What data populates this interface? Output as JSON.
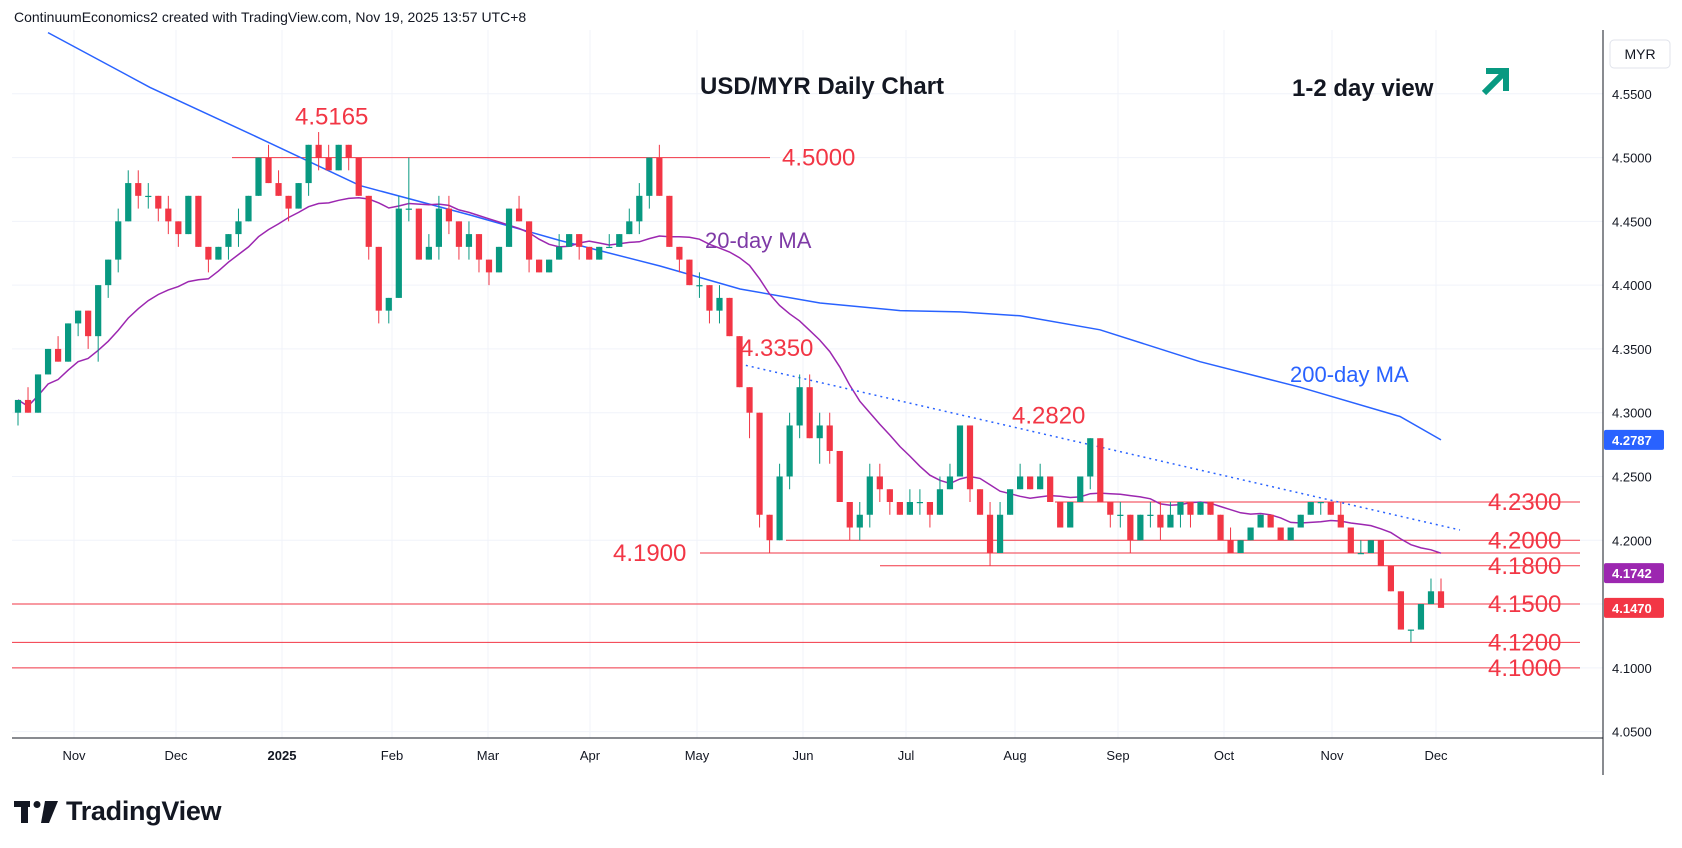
{
  "header": {
    "attribution": "ContinuumEconomics2 created with TradingView.com, Nov 19, 2025 13:57 UTC+8"
  },
  "brand": {
    "name": "TradingView"
  },
  "chart_data": {
    "type": "candlestick",
    "title": "USD/MYR Daily Chart",
    "currency_label": "MYR",
    "view": "1-2 day view",
    "view_direction": "up",
    "ylim": [
      4.045,
      4.6
    ],
    "y_ticks": [
      "4.0500",
      "4.1000",
      "4.1500",
      "4.2000",
      "4.2500",
      "4.3000",
      "4.3500",
      "4.4000",
      "4.4500",
      "4.5000",
      "4.5500"
    ],
    "x_ticks": [
      "Nov",
      "Dec",
      "2025",
      "Feb",
      "Mar",
      "Apr",
      "May",
      "Jun",
      "Jul",
      "Aug",
      "Sep",
      "Oct",
      "Nov",
      "Dec"
    ],
    "grid": true,
    "colors": {
      "up": "#089981",
      "down": "#f23645",
      "ma20": "#9c27b0",
      "ma200": "#2962ff",
      "level": "#f23645",
      "arrow": "#089981"
    },
    "price_badges": [
      {
        "label": "4.2787",
        "value": 4.2787,
        "color": "#2962ff"
      },
      {
        "label": "4.1742",
        "value": 4.1742,
        "color": "#9c27b0"
      },
      {
        "label": "4.1470",
        "value": 4.147,
        "color": "#f23645"
      }
    ],
    "levels": [
      {
        "label": "4.5165",
        "value": 4.5165
      },
      {
        "label": "4.5000",
        "value": 4.5
      },
      {
        "label": "4.3350",
        "value": 4.335
      },
      {
        "label": "4.2820",
        "value": 4.282
      },
      {
        "label": "4.2300",
        "value": 4.23
      },
      {
        "label": "4.2000",
        "value": 4.2
      },
      {
        "label": "4.1900",
        "value": 4.19
      },
      {
        "label": "4.1800",
        "value": 4.18
      },
      {
        "label": "4.1500",
        "value": 4.15
      },
      {
        "label": "4.1200",
        "value": 4.12
      },
      {
        "label": "4.1000",
        "value": 4.1
      }
    ],
    "series": [
      {
        "name": "20-day MA"
      },
      {
        "name": "200-day MA"
      }
    ],
    "candles": [
      [
        4.3,
        4.31,
        4.29,
        4.31
      ],
      [
        4.31,
        4.32,
        4.3,
        4.3
      ],
      [
        4.3,
        4.33,
        4.3,
        4.33
      ],
      [
        4.33,
        4.35,
        4.33,
        4.35
      ],
      [
        4.35,
        4.36,
        4.34,
        4.34
      ],
      [
        4.34,
        4.37,
        4.34,
        4.37
      ],
      [
        4.37,
        4.38,
        4.36,
        4.38
      ],
      [
        4.38,
        4.38,
        4.35,
        4.36
      ],
      [
        4.36,
        4.4,
        4.34,
        4.4
      ],
      [
        4.4,
        4.42,
        4.39,
        4.42
      ],
      [
        4.42,
        4.46,
        4.41,
        4.45
      ],
      [
        4.45,
        4.49,
        4.45,
        4.48
      ],
      [
        4.48,
        4.49,
        4.46,
        4.47
      ],
      [
        4.47,
        4.48,
        4.46,
        4.47
      ],
      [
        4.47,
        4.47,
        4.45,
        4.46
      ],
      [
        4.46,
        4.47,
        4.44,
        4.45
      ],
      [
        4.45,
        4.45,
        4.43,
        4.44
      ],
      [
        4.44,
        4.47,
        4.44,
        4.47
      ],
      [
        4.47,
        4.47,
        4.43,
        4.43
      ],
      [
        4.43,
        4.43,
        4.41,
        4.42
      ],
      [
        4.42,
        4.43,
        4.42,
        4.43
      ],
      [
        4.43,
        4.44,
        4.42,
        4.44
      ],
      [
        4.44,
        4.46,
        4.43,
        4.45
      ],
      [
        4.45,
        4.47,
        4.45,
        4.47
      ],
      [
        4.47,
        4.5,
        4.47,
        4.5
      ],
      [
        4.5,
        4.51,
        4.48,
        4.48
      ],
      [
        4.48,
        4.49,
        4.47,
        4.47
      ],
      [
        4.47,
        4.47,
        4.45,
        4.46
      ],
      [
        4.46,
        4.48,
        4.46,
        4.48
      ],
      [
        4.48,
        4.51,
        4.47,
        4.51
      ],
      [
        4.51,
        4.52,
        4.49,
        4.5
      ],
      [
        4.5,
        4.51,
        4.49,
        4.49
      ],
      [
        4.49,
        4.51,
        4.49,
        4.51
      ],
      [
        4.51,
        4.51,
        4.49,
        4.5
      ],
      [
        4.5,
        4.5,
        4.47,
        4.47
      ],
      [
        4.47,
        4.47,
        4.42,
        4.43
      ],
      [
        4.43,
        4.43,
        4.37,
        4.38
      ],
      [
        4.38,
        4.39,
        4.37,
        4.39
      ],
      [
        4.39,
        4.47,
        4.39,
        4.46
      ],
      [
        4.46,
        4.5,
        4.45,
        4.46
      ],
      [
        4.46,
        4.46,
        4.42,
        4.42
      ],
      [
        4.42,
        4.44,
        4.42,
        4.43
      ],
      [
        4.43,
        4.47,
        4.42,
        4.46
      ],
      [
        4.46,
        4.47,
        4.44,
        4.45
      ],
      [
        4.45,
        4.45,
        4.42,
        4.43
      ],
      [
        4.43,
        4.45,
        4.42,
        4.44
      ],
      [
        4.44,
        4.44,
        4.41,
        4.42
      ],
      [
        4.42,
        4.42,
        4.4,
        4.41
      ],
      [
        4.41,
        4.43,
        4.41,
        4.43
      ],
      [
        4.43,
        4.46,
        4.43,
        4.46
      ],
      [
        4.46,
        4.47,
        4.45,
        4.45
      ],
      [
        4.45,
        4.45,
        4.41,
        4.42
      ],
      [
        4.42,
        4.42,
        4.41,
        4.41
      ],
      [
        4.41,
        4.42,
        4.41,
        4.42
      ],
      [
        4.42,
        4.44,
        4.42,
        4.43
      ],
      [
        4.43,
        4.44,
        4.43,
        4.44
      ],
      [
        4.44,
        4.44,
        4.42,
        4.43
      ],
      [
        4.43,
        4.43,
        4.42,
        4.42
      ],
      [
        4.42,
        4.43,
        4.42,
        4.43
      ],
      [
        4.43,
        4.44,
        4.43,
        4.43
      ],
      [
        4.43,
        4.44,
        4.43,
        4.44
      ],
      [
        4.44,
        4.46,
        4.44,
        4.45
      ],
      [
        4.45,
        4.48,
        4.44,
        4.47
      ],
      [
        4.47,
        4.5,
        4.46,
        4.5
      ],
      [
        4.5,
        4.51,
        4.47,
        4.47
      ],
      [
        4.47,
        4.47,
        4.43,
        4.43
      ],
      [
        4.43,
        4.43,
        4.41,
        4.42
      ],
      [
        4.42,
        4.42,
        4.4,
        4.4
      ],
      [
        4.4,
        4.41,
        4.39,
        4.4
      ],
      [
        4.4,
        4.4,
        4.37,
        4.38
      ],
      [
        4.38,
        4.4,
        4.37,
        4.39
      ],
      [
        4.39,
        4.39,
        4.36,
        4.36
      ],
      [
        4.36,
        4.36,
        4.32,
        4.32
      ],
      [
        4.32,
        4.32,
        4.28,
        4.3
      ],
      [
        4.3,
        4.3,
        4.21,
        4.22
      ],
      [
        4.22,
        4.22,
        4.19,
        4.2
      ],
      [
        4.2,
        4.26,
        4.2,
        4.25
      ],
      [
        4.25,
        4.3,
        4.24,
        4.29
      ],
      [
        4.29,
        4.33,
        4.28,
        4.32
      ],
      [
        4.32,
        4.33,
        4.28,
        4.28
      ],
      [
        4.28,
        4.3,
        4.26,
        4.29
      ],
      [
        4.29,
        4.3,
        4.26,
        4.27
      ],
      [
        4.27,
        4.27,
        4.23,
        4.23
      ],
      [
        4.23,
        4.23,
        4.2,
        4.21
      ],
      [
        4.21,
        4.23,
        4.2,
        4.22
      ],
      [
        4.22,
        4.26,
        4.21,
        4.25
      ],
      [
        4.25,
        4.26,
        4.23,
        4.24
      ],
      [
        4.24,
        4.24,
        4.22,
        4.23
      ],
      [
        4.23,
        4.23,
        4.22,
        4.22
      ],
      [
        4.22,
        4.24,
        4.22,
        4.23
      ],
      [
        4.23,
        4.24,
        4.22,
        4.23
      ],
      [
        4.23,
        4.23,
        4.21,
        4.22
      ],
      [
        4.22,
        4.25,
        4.22,
        4.24
      ],
      [
        4.24,
        4.26,
        4.24,
        4.25
      ],
      [
        4.25,
        4.29,
        4.25,
        4.29
      ],
      [
        4.29,
        4.29,
        4.23,
        4.24
      ],
      [
        4.24,
        4.24,
        4.22,
        4.22
      ],
      [
        4.22,
        4.23,
        4.18,
        4.19
      ],
      [
        4.19,
        4.23,
        4.19,
        4.22
      ],
      [
        4.22,
        4.24,
        4.22,
        4.24
      ],
      [
        4.24,
        4.26,
        4.24,
        4.25
      ],
      [
        4.25,
        4.25,
        4.24,
        4.24
      ],
      [
        4.24,
        4.26,
        4.24,
        4.25
      ],
      [
        4.25,
        4.25,
        4.23,
        4.23
      ],
      [
        4.23,
        4.23,
        4.21,
        4.21
      ],
      [
        4.21,
        4.23,
        4.21,
        4.23
      ],
      [
        4.23,
        4.25,
        4.23,
        4.25
      ],
      [
        4.25,
        4.28,
        4.24,
        4.28
      ],
      [
        4.28,
        4.28,
        4.23,
        4.23
      ],
      [
        4.23,
        4.23,
        4.21,
        4.22
      ],
      [
        4.22,
        4.23,
        4.21,
        4.22
      ],
      [
        4.22,
        4.22,
        4.19,
        4.2
      ],
      [
        4.2,
        4.22,
        4.2,
        4.22
      ],
      [
        4.22,
        4.23,
        4.21,
        4.22
      ],
      [
        4.22,
        4.23,
        4.2,
        4.21
      ],
      [
        4.21,
        4.23,
        4.21,
        4.22
      ],
      [
        4.22,
        4.23,
        4.21,
        4.23
      ],
      [
        4.23,
        4.23,
        4.21,
        4.22
      ],
      [
        4.22,
        4.23,
        4.22,
        4.23
      ],
      [
        4.23,
        4.23,
        4.22,
        4.22
      ],
      [
        4.22,
        4.22,
        4.2,
        4.2
      ],
      [
        4.2,
        4.21,
        4.19,
        4.19
      ],
      [
        4.19,
        4.2,
        4.19,
        4.2
      ],
      [
        4.2,
        4.21,
        4.2,
        4.21
      ],
      [
        4.21,
        4.22,
        4.21,
        4.22
      ],
      [
        4.22,
        4.22,
        4.21,
        4.21
      ],
      [
        4.21,
        4.21,
        4.2,
        4.2
      ],
      [
        4.2,
        4.21,
        4.2,
        4.21
      ],
      [
        4.21,
        4.22,
        4.21,
        4.22
      ],
      [
        4.22,
        4.23,
        4.22,
        4.23
      ],
      [
        4.23,
        4.23,
        4.22,
        4.23
      ],
      [
        4.23,
        4.23,
        4.22,
        4.22
      ],
      [
        4.22,
        4.23,
        4.21,
        4.21
      ],
      [
        4.21,
        4.21,
        4.19,
        4.19
      ],
      [
        4.19,
        4.2,
        4.19,
        4.19
      ],
      [
        4.19,
        4.2,
        4.19,
        4.2
      ],
      [
        4.2,
        4.2,
        4.18,
        4.18
      ],
      [
        4.18,
        4.18,
        4.16,
        4.16
      ],
      [
        4.16,
        4.16,
        4.13,
        4.13
      ],
      [
        4.13,
        4.13,
        4.12,
        4.13
      ],
      [
        4.13,
        4.15,
        4.13,
        4.15
      ],
      [
        4.15,
        4.17,
        4.15,
        4.16
      ],
      [
        4.16,
        4.17,
        4.15,
        4.147
      ]
    ]
  }
}
